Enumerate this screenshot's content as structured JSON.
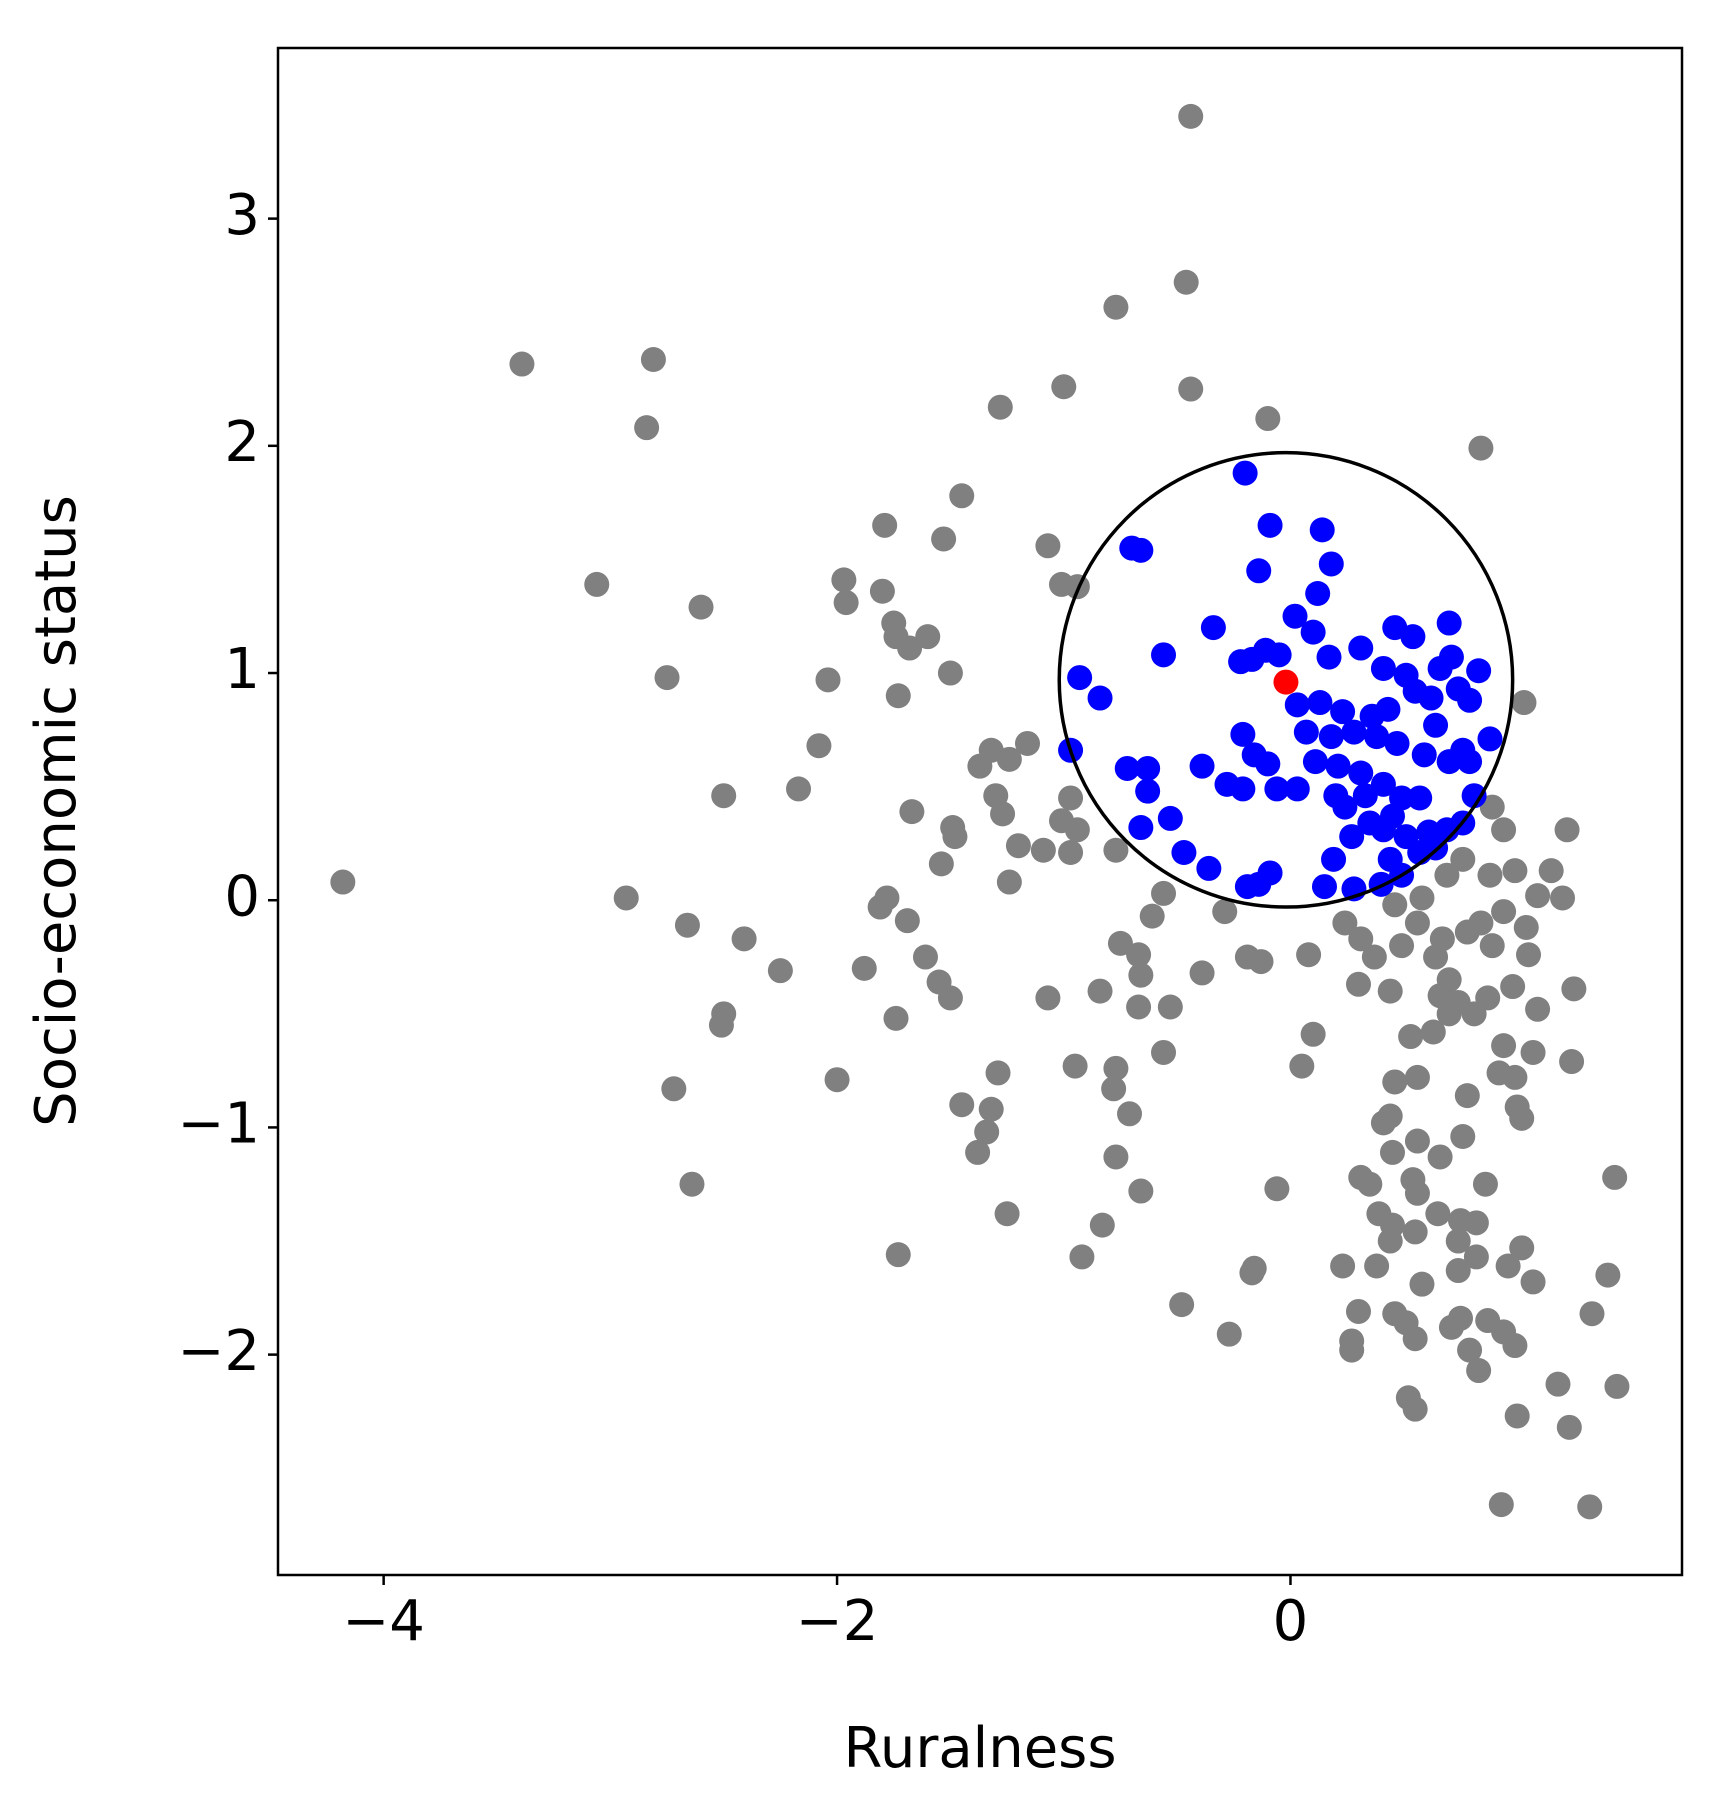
{
  "chart_data": {
    "type": "scatter",
    "x_label": "Ruralness",
    "y_label": "Socio-economic status",
    "xlim": [
      -4.466,
      1.727
    ],
    "ylim": [
      -2.97,
      3.751
    ],
    "xticks": [
      {
        "value": -4,
        "label": "−4"
      },
      {
        "value": -2,
        "label": "−2"
      },
      0
    ],
    "yticks": [
      {
        "value": -2,
        "label": "−2"
      },
      {
        "value": -1,
        "label": "−1"
      },
      0,
      1,
      2,
      3
    ],
    "circle": {
      "center": [
        -0.02,
        0.97
      ],
      "radius": 1.0,
      "color": "#000000"
    },
    "series": [
      {
        "color": "#808080",
        "x": [
          -0.44,
          -0.46,
          -0.77,
          -3.39,
          -2.81,
          -2.84,
          -1.0,
          -0.44,
          -1.28,
          -0.1,
          0.84,
          -1.45,
          -1.79,
          -1.53,
          -1.07,
          -3.06,
          -1.97,
          -1.96,
          -2.6,
          -1.8,
          -1.75,
          -1.74,
          -1.6,
          -1.68,
          -1.01,
          -0.94,
          -2.75,
          -2.04,
          -1.5,
          -1.73,
          1.03,
          -2.08,
          -1.32,
          -1.37,
          -1.16,
          -1.24,
          -2.5,
          -2.17,
          -1.3,
          -1.27,
          -1.67,
          -1.49,
          -1.48,
          -0.97,
          -1.01,
          -0.94,
          -1.2,
          -1.09,
          -0.97,
          -0.77,
          -1.54,
          -1.24,
          -4.18,
          -2.93,
          -2.66,
          -2.41,
          -2.25,
          -1.78,
          -1.81,
          -1.69,
          -1.88,
          -1.61,
          -1.55,
          -1.5,
          -1.74,
          -2.5,
          -2.51,
          -2.72,
          -2.0,
          -2.64,
          -1.07,
          -0.84,
          -0.75,
          -0.67,
          -0.66,
          -0.67,
          -0.53,
          -0.61,
          -0.56,
          -0.39,
          -0.19,
          -0.13,
          0.08,
          -0.29,
          -0.95,
          -1.29,
          -1.45,
          -1.32,
          -1.34,
          -1.38,
          -0.77,
          -0.78,
          -0.71,
          -0.56,
          -0.77,
          -0.66,
          0.05,
          0.1,
          -0.06,
          -1.25,
          -0.83,
          -0.92,
          -1.73,
          -0.48,
          -0.27,
          -0.17,
          -0.16,
          0.24,
          0.31,
          0.37,
          0.3,
          0.44,
          0.49,
          0.56,
          0.64,
          0.7,
          0.74,
          0.81,
          0.84,
          0.89,
          0.94,
          0.99,
          0.88,
          0.76,
          0.89,
          0.94,
          1.22,
          1.15,
          1.09,
          1.2,
          1.04,
          1.05,
          0.98,
          1.09,
          1.25,
          1.24,
          1.07,
          0.94,
          0.92,
          0.99,
          1.0,
          1.02,
          0.78,
          0.76,
          0.66,
          0.56,
          0.44,
          0.41,
          0.45,
          0.46,
          0.56,
          0.53,
          0.63,
          0.35,
          0.31,
          0.54,
          0.56,
          0.86,
          0.39,
          0.45,
          0.44,
          0.55,
          0.65,
          0.75,
          0.82,
          0.74,
          0.23,
          0.38,
          0.58,
          0.82,
          0.74,
          0.96,
          1.02,
          1.07,
          0.3,
          0.46,
          0.51,
          0.71,
          0.75,
          0.87,
          0.94,
          0.27,
          0.27,
          0.55,
          0.79,
          0.83,
          0.99,
          0.52,
          0.55,
          1.0,
          1.18,
          1.23,
          1.44,
          1.4,
          1.33,
          1.43,
          0.93,
          1.32,
          0.69,
          0.58,
          0.67,
          0.78,
          0.7,
          0.87,
          0.66,
          0.46
        ],
        "y": [
          3.45,
          2.72,
          2.61,
          2.36,
          2.38,
          2.08,
          2.26,
          2.25,
          2.17,
          2.12,
          1.99,
          1.78,
          1.65,
          1.59,
          1.56,
          1.39,
          1.41,
          1.31,
          1.29,
          1.36,
          1.22,
          1.16,
          1.16,
          1.11,
          1.39,
          1.38,
          0.98,
          0.97,
          1.0,
          0.9,
          0.87,
          0.68,
          0.66,
          0.59,
          0.69,
          0.62,
          0.46,
          0.49,
          0.46,
          0.38,
          0.39,
          0.32,
          0.28,
          0.45,
          0.35,
          0.31,
          0.24,
          0.22,
          0.21,
          0.22,
          0.16,
          0.08,
          0.08,
          0.01,
          -0.11,
          -0.17,
          -0.31,
          0.01,
          -0.03,
          -0.09,
          -0.3,
          -0.25,
          -0.36,
          -0.43,
          -0.52,
          -0.5,
          -0.55,
          -0.83,
          -0.79,
          -1.25,
          -0.43,
          -0.4,
          -0.19,
          -0.24,
          -0.33,
          -0.47,
          -0.47,
          -0.07,
          0.03,
          -0.32,
          -0.25,
          -0.27,
          -0.24,
          -0.05,
          -0.73,
          -0.76,
          -0.9,
          -0.92,
          -1.02,
          -1.11,
          -0.74,
          -0.83,
          -0.94,
          -0.67,
          -1.13,
          -1.28,
          -0.73,
          -0.59,
          -1.27,
          -1.38,
          -1.43,
          -1.57,
          -1.56,
          -1.78,
          -1.91,
          -1.64,
          -1.62,
          -0.1,
          -0.17,
          -0.25,
          -0.37,
          -0.4,
          -0.2,
          -0.1,
          -0.25,
          -0.35,
          -0.45,
          -0.5,
          -0.1,
          -0.2,
          -0.05,
          0.13,
          0.11,
          0.18,
          0.41,
          0.31,
          0.31,
          0.13,
          0.02,
          0.01,
          -0.12,
          -0.24,
          -0.38,
          -0.48,
          -0.39,
          -0.71,
          -0.67,
          -0.64,
          -0.76,
          -0.78,
          -0.91,
          -0.96,
          -0.86,
          -1.04,
          -1.13,
          -1.06,
          -0.95,
          -0.98,
          -1.11,
          -0.8,
          -0.78,
          -0.6,
          -0.58,
          -1.25,
          -1.22,
          -1.23,
          -1.29,
          -1.25,
          -1.38,
          -1.43,
          -1.5,
          -1.46,
          -1.38,
          -1.41,
          -1.42,
          -1.5,
          -1.61,
          -1.61,
          -1.69,
          -1.57,
          -1.63,
          -1.61,
          -1.53,
          -1.68,
          -1.81,
          -1.82,
          -1.86,
          -1.88,
          -1.84,
          -1.85,
          -1.9,
          -1.94,
          -1.98,
          -1.93,
          -1.98,
          -2.07,
          -1.96,
          -2.19,
          -2.24,
          -2.27,
          -2.13,
          -2.32,
          -2.14,
          -1.65,
          -1.82,
          -1.22,
          -2.66,
          -2.67,
          0.11,
          0.01,
          -0.17,
          -0.14,
          -0.5,
          -0.43,
          -0.42,
          -0.02
        ]
      },
      {
        "color": "#0000ff",
        "x": [
          -0.2,
          -0.09,
          0.14,
          0.18,
          -0.7,
          -0.66,
          -0.14,
          0.12,
          0.02,
          -0.34,
          0.1,
          0.31,
          -0.56,
          -0.22,
          -0.17,
          -0.11,
          -0.05,
          0.17,
          -0.93,
          -0.84,
          0.46,
          0.54,
          0.7,
          0.41,
          0.51,
          0.71,
          0.66,
          0.83,
          0.74,
          0.79,
          0.62,
          0.55,
          0.03,
          0.13,
          0.23,
          0.36,
          0.43,
          0.64,
          0.07,
          0.18,
          0.28,
          0.38,
          0.47,
          -0.21,
          -0.16,
          -0.1,
          0.11,
          0.21,
          0.31,
          0.59,
          0.7,
          0.79,
          0.88,
          0.76,
          -0.97,
          -0.72,
          -0.63,
          -0.63,
          -0.39,
          -0.28,
          -0.21,
          -0.06,
          0.03,
          0.2,
          0.24,
          0.33,
          0.41,
          0.49,
          0.57,
          0.45,
          0.35,
          0.27,
          0.41,
          0.51,
          0.61,
          0.69,
          0.76,
          0.81,
          -0.53,
          -0.66,
          -0.47,
          -0.36,
          -0.09,
          -0.14,
          -0.19,
          0.19,
          0.44,
          0.57,
          0.64,
          0.15,
          0.28,
          0.4,
          0.49
        ],
        "y": [
          1.88,
          1.65,
          1.63,
          1.48,
          1.55,
          1.54,
          1.45,
          1.35,
          1.25,
          1.2,
          1.18,
          1.11,
          1.08,
          1.05,
          1.06,
          1.1,
          1.08,
          1.07,
          0.98,
          0.89,
          1.2,
          1.16,
          1.22,
          1.02,
          0.99,
          1.07,
          1.02,
          1.01,
          0.93,
          0.88,
          0.89,
          0.92,
          0.86,
          0.87,
          0.83,
          0.81,
          0.84,
          0.77,
          0.74,
          0.72,
          0.74,
          0.72,
          0.69,
          0.73,
          0.64,
          0.6,
          0.61,
          0.59,
          0.56,
          0.64,
          0.61,
          0.61,
          0.71,
          0.66,
          0.66,
          0.58,
          0.58,
          0.48,
          0.59,
          0.51,
          0.49,
          0.49,
          0.49,
          0.46,
          0.41,
          0.46,
          0.51,
          0.45,
          0.45,
          0.37,
          0.34,
          0.28,
          0.31,
          0.28,
          0.3,
          0.31,
          0.34,
          0.46,
          0.36,
          0.32,
          0.21,
          0.14,
          0.12,
          0.07,
          0.06,
          0.18,
          0.18,
          0.21,
          0.23,
          0.06,
          0.05,
          0.07,
          0.11
        ]
      },
      {
        "color": "#ff0000",
        "x": [
          -0.02
        ],
        "y": [
          0.96
        ]
      }
    ]
  }
}
